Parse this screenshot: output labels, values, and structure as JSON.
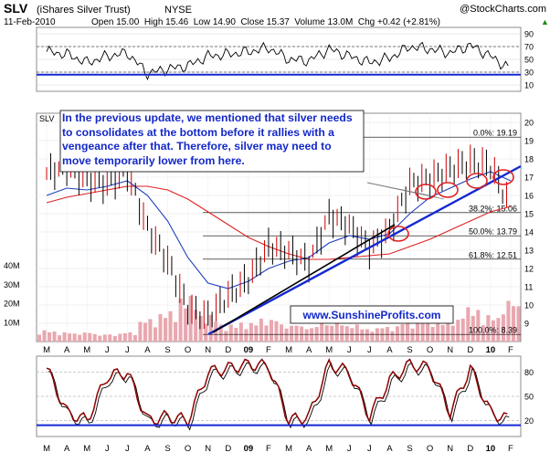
{
  "header": {
    "symbol": "SLV",
    "name": "(iShares Silver Trust)",
    "exchange": "NYSE",
    "copyright": "@StockCharts.com",
    "date": "11-Feb-2010",
    "quote": "Open 15.00  High 15.46  Low 14.90  Close 15.37  Volume 13.0M  Chg +0.42 (+2.81%)",
    "quote_arrow": "▲"
  },
  "colors": {
    "frame": "#8c8c8c",
    "price": "#000000",
    "ma_blue": "#1f3fbf",
    "ma_red": "#dd2222",
    "trendline": "#1428d2",
    "volume": "#e8a8b0",
    "fib_line": "#000000",
    "stoch": "#8b0000",
    "rsi_fill": "#3a7a3a",
    "annotation_text": "#1428c8",
    "circle": "#e02020"
  },
  "rsi_panel": {
    "ticks": [
      "90",
      "70",
      "50",
      "30",
      "10"
    ],
    "levels": {
      "upper": 70,
      "lower": 30
    },
    "min": 0,
    "max": 100
  },
  "main_panel": {
    "label": "SLV",
    "y_ticks": [
      "20",
      "19",
      "18",
      "17",
      "16",
      "15",
      "14",
      "13",
      "12",
      "11",
      "10",
      "9"
    ],
    "volume_ticks": [
      "40M",
      "30M",
      "20M",
      "10M"
    ],
    "x_labels": [
      "M",
      "A",
      "M",
      "J",
      "J",
      "A",
      "S",
      "O",
      "N",
      "D",
      "09",
      "F",
      "M",
      "A",
      "M",
      "J",
      "J",
      "A",
      "S",
      "O",
      "N",
      "D",
      "10",
      "F"
    ],
    "fib_levels": [
      {
        "label": "0.0%: 19.19",
        "value": 19.19
      },
      {
        "label": "38.2%: 15.06",
        "value": 15.06
      },
      {
        "label": "50.0%: 13.79",
        "value": 13.79
      },
      {
        "label": "61.8%: 12.51",
        "value": 12.51
      },
      {
        "label": "100.0%: 8.39",
        "value": 8.39
      }
    ],
    "annotation": "In the previous update, we mentioned that silver needs to consolidates at the bottom before it rallies with a vengeance after that. Therefore, silver may need to move temporarily lower from here.",
    "watermark": "www.SunshineProfits.com"
  },
  "stoch_panel": {
    "ticks": [
      "80",
      "50",
      "20"
    ],
    "levels": {
      "upper": 80,
      "lower": 20
    }
  },
  "chart_data": {
    "type": "line",
    "title": "SLV (iShares Silver Trust) NYSE",
    "xlabel": "",
    "ylabel": "",
    "ylim": [
      8,
      20.5
    ],
    "x": [
      "M",
      "A",
      "M",
      "J",
      "J",
      "A",
      "S",
      "O",
      "N",
      "D",
      "09",
      "F",
      "M",
      "A",
      "M",
      "J",
      "J",
      "A",
      "S",
      "O",
      "N",
      "D",
      "10",
      "F"
    ],
    "series": [
      {
        "name": "SLV",
        "values": [
          17.2,
          17.6,
          16.8,
          16.6,
          17.3,
          14.2,
          12.4,
          9.8,
          9.3,
          10.5,
          11.4,
          13.2,
          12.9,
          12.3,
          14.9,
          14.3,
          13.1,
          14.1,
          16.6,
          16.9,
          17.4,
          17.8,
          17.6,
          15.4
        ]
      },
      {
        "name": "",
        "values": [
          16.0,
          16.4,
          16.3,
          16.5,
          16.8,
          16.0,
          14.6,
          12.6,
          11.2,
          10.9,
          11.3,
          12.0,
          12.4,
          12.6,
          13.4,
          13.8,
          13.6,
          13.9,
          15.0,
          15.9,
          16.4,
          16.9,
          17.3,
          16.8
        ]
      },
      {
        "name": "",
        "values": [
          15.6,
          15.9,
          16.1,
          16.3,
          16.5,
          16.5,
          16.3,
          15.8,
          15.1,
          14.4,
          13.7,
          13.2,
          12.8,
          12.5,
          12.5,
          12.6,
          12.7,
          12.8,
          13.2,
          13.6,
          14.1,
          14.6,
          15.1,
          15.4
        ]
      }
    ],
    "volume_M": [
      6,
      5,
      5,
      4,
      5,
      12,
      16,
      24,
      14,
      9,
      10,
      12,
      9,
      8,
      10,
      9,
      7,
      8,
      11,
      12,
      12,
      18,
      14,
      22
    ],
    "rsi": [
      62,
      58,
      45,
      55,
      60,
      28,
      35,
      40,
      55,
      58,
      62,
      68,
      50,
      48,
      66,
      55,
      45,
      52,
      70,
      66,
      60,
      72,
      55,
      34
    ],
    "stochastic": [
      85,
      30,
      20,
      75,
      80,
      20,
      25,
      20,
      80,
      85,
      90,
      88,
      20,
      25,
      90,
      80,
      25,
      70,
      90,
      85,
      30,
      85,
      30,
      20
    ],
    "fibonacci": [
      19.19,
      15.06,
      13.79,
      12.51,
      8.39
    ],
    "grid": true
  }
}
